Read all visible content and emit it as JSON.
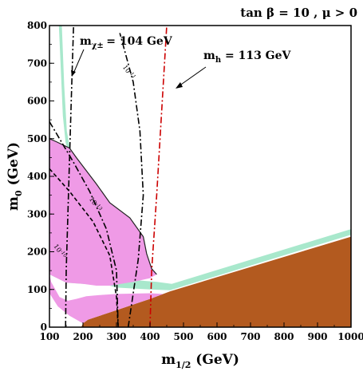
{
  "chart_data": {
    "type": "area",
    "title": "tan β = 10 ,  μ > 0",
    "xlabel": "m1/2 (GeV)",
    "xlabel_main": "m",
    "xlabel_sub": "1/2",
    "xlabel_unit": " (GeV)",
    "ylabel": "m0 (GeV)",
    "ylabel_main": "m",
    "ylabel_sub": "0",
    "ylabel_unit": " (GeV)",
    "xlim": [
      100,
      1000
    ],
    "ylim": [
      0,
      800
    ],
    "xticks": [
      100,
      200,
      300,
      400,
      500,
      600,
      700,
      800,
      900,
      1000
    ],
    "yticks": [
      0,
      100,
      200,
      300,
      400,
      500,
      600,
      700,
      800
    ],
    "grid": false,
    "regions": [
      {
        "role": "excluded-brown",
        "color": "#b35a1f",
        "points": [
          [
            100,
            0
          ],
          [
            1000,
            0
          ],
          [
            1000,
            240
          ],
          [
            460,
            95
          ],
          [
            400,
            75
          ],
          [
            300,
            45
          ],
          [
            215,
            20
          ],
          [
            200,
            10
          ],
          [
            195,
            0
          ]
        ]
      },
      {
        "role": "green-band-lower",
        "color": "#a8e8cc",
        "points": [
          [
            100,
            140
          ],
          [
            150,
            118
          ],
          [
            200,
            115
          ],
          [
            280,
            110
          ],
          [
            300,
            105
          ],
          [
            400,
            100
          ],
          [
            460,
            98
          ],
          [
            1000,
            245
          ],
          [
            1000,
            260
          ],
          [
            465,
            115
          ],
          [
            420,
            120
          ],
          [
            350,
            125
          ],
          [
            300,
            132
          ],
          [
            255,
            138
          ],
          [
            210,
            145
          ],
          [
            180,
            148
          ],
          [
            160,
            155
          ],
          [
            130,
            165
          ],
          [
            100,
            160
          ]
        ]
      },
      {
        "role": "green-band-upper-left",
        "color": "#a8e8cc",
        "points": [
          [
            128,
            800
          ],
          [
            137,
            800
          ],
          [
            144,
            640
          ],
          [
            152,
            520
          ],
          [
            160,
            480
          ],
          [
            155,
            470
          ],
          [
            148,
            490
          ],
          [
            140,
            560
          ],
          [
            134,
            680
          ]
        ]
      },
      {
        "role": "pink-region",
        "color": "#ef9ae6",
        "points": [
          [
            100,
            500
          ],
          [
            120,
            492
          ],
          [
            160,
            475
          ],
          [
            180,
            450
          ],
          [
            240,
            380
          ],
          [
            280,
            330
          ],
          [
            340,
            290
          ],
          [
            380,
            240
          ],
          [
            390,
            195
          ],
          [
            405,
            155
          ],
          [
            420,
            140
          ],
          [
            400,
            130
          ],
          [
            350,
            120
          ],
          [
            280,
            110
          ],
          [
            240,
            110
          ],
          [
            200,
            115
          ],
          [
            150,
            118
          ],
          [
            100,
            140
          ]
        ]
      },
      {
        "role": "pink-region-lower",
        "color": "#ef9ae6",
        "points": [
          [
            100,
            140
          ],
          [
            100,
            90
          ],
          [
            125,
            55
          ],
          [
            160,
            30
          ],
          [
            200,
            10
          ],
          [
            215,
            20
          ],
          [
            300,
            45
          ],
          [
            400,
            75
          ],
          [
            440,
            88
          ],
          [
            400,
            90
          ],
          [
            300,
            88
          ],
          [
            250,
            85
          ],
          [
            210,
            82
          ],
          [
            180,
            75
          ],
          [
            155,
            70
          ],
          [
            130,
            80
          ],
          [
            105,
            120
          ]
        ]
      }
    ],
    "lines": [
      {
        "label": "mχ± = 104 GeV",
        "style": "dash-dot",
        "color": "#000000",
        "points": [
          [
            148,
            0
          ],
          [
            150,
            150
          ],
          [
            155,
            300
          ],
          [
            160,
            450
          ],
          [
            165,
            600
          ],
          [
            172,
            800
          ]
        ]
      },
      {
        "label": "mh = 113 GeV",
        "style": "dash-dot",
        "color": "#cc0000",
        "points": [
          [
            400,
            0
          ],
          [
            405,
            150
          ],
          [
            420,
            350
          ],
          [
            430,
            500
          ],
          [
            440,
            650
          ],
          [
            450,
            800
          ]
        ]
      },
      {
        "label": "10^{-10}",
        "style": "dash-dot",
        "color": "#000000",
        "points": [
          [
            335,
            0
          ],
          [
            365,
            180
          ],
          [
            380,
            350
          ],
          [
            370,
            520
          ],
          [
            350,
            650
          ],
          [
            310,
            780
          ]
        ]
      },
      {
        "label": "10^{-11}",
        "style": "dash-dot",
        "color": "#000000",
        "points": [
          [
            100,
            545
          ],
          [
            130,
            500
          ],
          [
            170,
            440
          ],
          [
            220,
            360
          ],
          [
            270,
            260
          ],
          [
            300,
            150
          ],
          [
            305,
            0
          ]
        ]
      },
      {
        "label": "10^{-12}",
        "style": "dash",
        "color": "#000000",
        "points": [
          [
            100,
            420
          ],
          [
            160,
            360
          ],
          [
            230,
            280
          ],
          [
            280,
            190
          ],
          [
            300,
            80
          ],
          [
            305,
            0
          ]
        ]
      }
    ],
    "contour_labels": [
      {
        "text": "10",
        "sup": "11",
        "x": 318,
        "y": 690
      },
      {
        "text": "10",
        "sup": "13",
        "x": 218,
        "y": 340
      },
      {
        "text": "10",
        "sup": "10",
        "x": 112,
        "y": 215
      }
    ],
    "annotations": [
      {
        "main": "m",
        "sub": "χ± ",
        "rest": "= 104 GeV"
      },
      {
        "main": "m",
        "sub": "h",
        "rest": "  = 113 GeV"
      }
    ]
  }
}
